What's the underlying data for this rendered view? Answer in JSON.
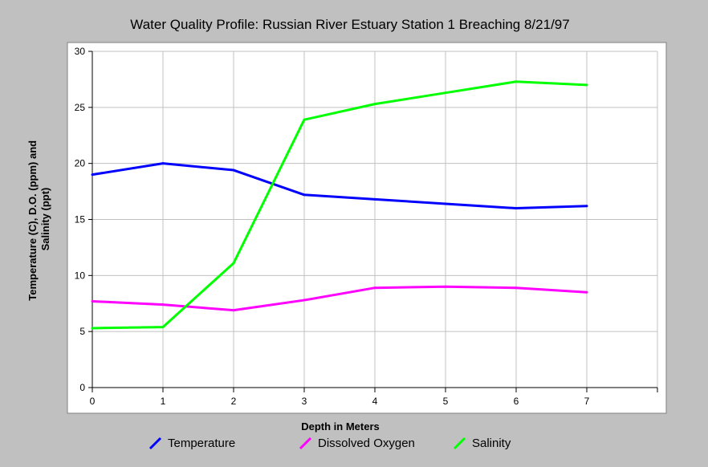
{
  "chart_data": {
    "type": "line",
    "title": "Water Quality Profile: Russian River Estuary Station 1 Breaching 8/21/97",
    "xlabel": "Depth in Meters",
    "ylabel_lines": [
      "Temperature (C), D.O. (ppm) and",
      "Salinity (ppt)"
    ],
    "xlim": [
      0,
      8
    ],
    "ylim": [
      0,
      30
    ],
    "x_ticks": [
      "0",
      "1",
      "2",
      "3",
      "4",
      "5",
      "6",
      "7"
    ],
    "y_ticks": [
      "0",
      "5",
      "10",
      "15",
      "20",
      "25",
      "30"
    ],
    "grid": true,
    "legend_position": "bottom",
    "series": [
      {
        "name": "Temperature",
        "color": "#0000ff",
        "x": [
          0,
          1,
          2,
          3,
          4,
          5,
          6,
          7
        ],
        "values": [
          19.0,
          20.0,
          19.4,
          17.2,
          16.8,
          16.4,
          16.0,
          16.2
        ]
      },
      {
        "name": "Dissolved Oxygen",
        "color": "#ff00ff",
        "x": [
          0,
          1,
          2,
          3,
          4,
          5,
          6,
          7
        ],
        "values": [
          7.7,
          7.4,
          6.9,
          7.8,
          8.9,
          9.0,
          8.9,
          8.5
        ]
      },
      {
        "name": "Salinity",
        "color": "#00ff00",
        "x": [
          0,
          1,
          2,
          3,
          4,
          5,
          6,
          7
        ],
        "values": [
          5.3,
          5.4,
          11.1,
          23.9,
          25.3,
          26.3,
          27.3,
          27.0
        ]
      }
    ]
  }
}
